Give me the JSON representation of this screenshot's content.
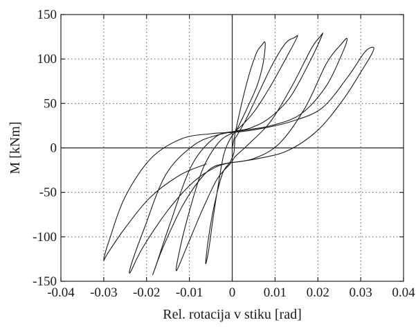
{
  "chart_data": {
    "type": "line",
    "title": "",
    "xlabel": "Rel. rotacija v stiku [rad]",
    "ylabel": "M [kNm]",
    "xlim": [
      -0.04,
      0.04
    ],
    "ylim": [
      -150,
      150
    ],
    "xticks": [
      -0.04,
      -0.03,
      -0.02,
      -0.01,
      0,
      0.01,
      0.02,
      0.03,
      0.04
    ],
    "xtick_labels": [
      "-0.04",
      "-0.03",
      "-0.02",
      "-0.01",
      "0",
      "0.01",
      "0.02",
      "0.03",
      "0.04"
    ],
    "yticks": [
      -150,
      -100,
      -50,
      0,
      50,
      100,
      150
    ],
    "ytick_labels": [
      "-150",
      "-100",
      "-50",
      "0",
      "50",
      "100",
      "150"
    ],
    "grid": true,
    "zero_lines": true,
    "series": [
      {
        "x": [
          0,
          0.0015,
          0.0035,
          0.0055,
          0.0068,
          0.0077,
          0.0072,
          0.0058,
          0.0035,
          0.0012,
          -0.0005,
          -0.002,
          -0.0032,
          -0.0045,
          -0.0055,
          -0.0062,
          -0.0055,
          -0.004,
          -0.0022,
          -0.0005,
          0.0004,
          0.0006
        ],
        "y": [
          0,
          35,
          75,
          105,
          115,
          118,
          95,
          70,
          45,
          22,
          10,
          -8,
          -40,
          -80,
          -115,
          -130,
          -100,
          -60,
          -28,
          -16,
          -5,
          10
        ]
      },
      {
        "x": [
          0.0006,
          0.003,
          0.006,
          0.0095,
          0.0125,
          0.0145,
          0.0152,
          0.0128,
          0.009,
          0.005,
          0.001,
          -0.003,
          -0.007,
          -0.0105,
          -0.0125,
          -0.013,
          -0.0105,
          -0.007,
          -0.0035,
          -0.0005,
          0.0006
        ],
        "y": [
          10,
          30,
          60,
          95,
          118,
          124,
          125,
          103,
          70,
          40,
          20,
          7,
          -25,
          -80,
          -120,
          -138,
          -110,
          -70,
          -35,
          -18,
          -10
        ]
      },
      {
        "x": [
          0.0006,
          0.004,
          0.009,
          0.014,
          0.0185,
          0.0205,
          0.021,
          0.018,
          0.0135,
          0.0085,
          0.004,
          0.0008,
          -0.004,
          -0.0095,
          -0.0145,
          -0.0175,
          -0.0185,
          -0.016,
          -0.011,
          -0.0055,
          -0.001
        ],
        "y": [
          -10,
          5,
          30,
          70,
          112,
          125,
          127,
          96,
          57,
          33,
          22,
          19,
          12,
          -20,
          -85,
          -128,
          -142,
          -110,
          -60,
          -25,
          -17
        ]
      },
      {
        "x": [
          -0.001,
          0.005,
          0.011,
          0.017,
          0.022,
          0.0255,
          0.0268,
          0.026,
          0.022,
          0.016,
          0.009,
          0.003,
          -0.003,
          -0.009,
          -0.0155,
          -0.0205,
          -0.0235,
          -0.0238,
          -0.021,
          -0.015,
          -0.009,
          -0.004,
          -0.0008
        ],
        "y": [
          -17,
          -12,
          5,
          45,
          95,
          117,
          123,
          110,
          70,
          38,
          25,
          20,
          15,
          3,
          -30,
          -90,
          -130,
          -140,
          -113,
          -70,
          -38,
          -22,
          -17
        ]
      },
      {
        "x": [
          -0.0008,
          0.006,
          0.013,
          0.02,
          0.026,
          0.03,
          0.0325,
          0.033,
          0.031,
          0.027,
          0.021,
          0.014,
          0.007,
          0.0015,
          -0.005,
          -0.012,
          -0.019,
          -0.025,
          -0.0288,
          -0.03,
          -0.029,
          -0.025,
          -0.019,
          -0.012,
          -0.006
        ],
        "y": [
          -17,
          -12,
          -3,
          20,
          55,
          85,
          105,
          113,
          108,
          80,
          45,
          30,
          22,
          18,
          16,
          10,
          -12,
          -55,
          -105,
          -126,
          -118,
          -90,
          -55,
          -30,
          -18
        ]
      }
    ]
  }
}
